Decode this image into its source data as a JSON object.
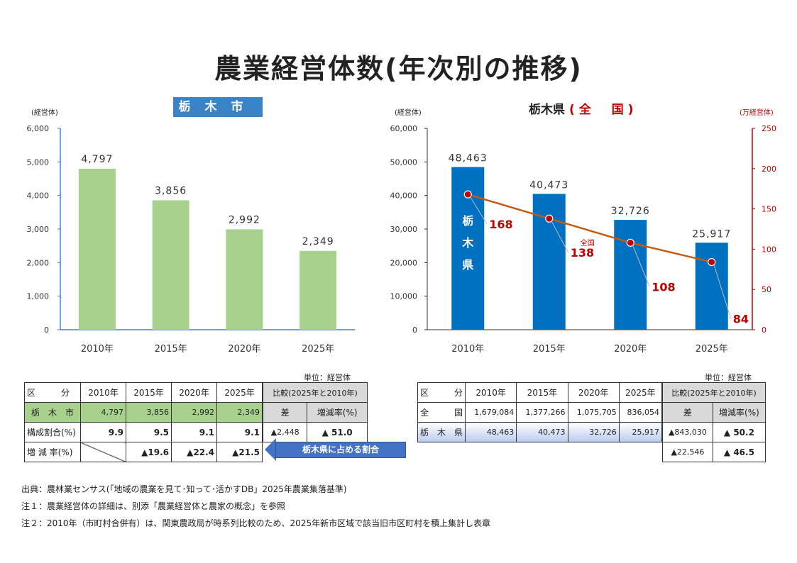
{
  "title": "農業経営体数(年次別の推移)",
  "left_chart": {
    "badge": "栃木市",
    "y_unit": "(経営体)"
  },
  "right_chart": {
    "title_main": "栃木県",
    "title_red": "(全　国)",
    "y_unit_left": "(経営体)",
    "y_unit_right": "(万経営体)",
    "bar_inner_label": [
      "栃",
      "木",
      "県"
    ],
    "line_label": "全国"
  },
  "chart_data": [
    {
      "type": "bar",
      "title": "栃木市",
      "categories": [
        "2010年",
        "2015年",
        "2020年",
        "2025年"
      ],
      "values": [
        4797,
        3856,
        2992,
        2349
      ],
      "value_labels": [
        "4,797",
        "3,856",
        "2,992",
        "2,349"
      ],
      "ylabel": "(経営体)",
      "ylim": [
        0,
        6000
      ],
      "yticks": [
        "0",
        "1,000",
        "2,000",
        "3,000",
        "4,000",
        "5,000",
        "6,000"
      ],
      "color": "#a9d18e"
    },
    {
      "type": "bar+line",
      "title": "栃木県(全国)",
      "categories": [
        "2010年",
        "2015年",
        "2020年",
        "2025年"
      ],
      "series": [
        {
          "name": "栃木県",
          "type": "bar",
          "values": [
            48463,
            40473,
            32726,
            25917
          ],
          "value_labels": [
            "48,463",
            "40,473",
            "32,726",
            "25,917"
          ],
          "axis": "left",
          "color": "#0070c0"
        },
        {
          "name": "全国",
          "type": "line",
          "values": [
            168,
            138,
            108,
            84
          ],
          "value_labels": [
            "168",
            "138",
            "108",
            "84"
          ],
          "axis": "right",
          "color": "#c55a11",
          "marker_color": "#c00000"
        }
      ],
      "ylim_left": [
        0,
        60000
      ],
      "yticks_left": [
        "0",
        "10,000",
        "20,000",
        "30,000",
        "40,000",
        "50,000",
        "60,000"
      ],
      "ylim_right": [
        0,
        250
      ],
      "yticks_right": [
        "0",
        "50",
        "100",
        "150",
        "200",
        "250"
      ]
    }
  ],
  "table_left": {
    "unit": "単位：経営体",
    "header": [
      "区　　　分",
      "2010年",
      "2015年",
      "2020年",
      "2025年"
    ],
    "compare_header": "比較(2025年と2010年)",
    "compare_sub": [
      "差",
      "増減率(%)"
    ],
    "rows": [
      {
        "label": "栃　木　市",
        "values": [
          "4,797",
          "3,856",
          "2,992",
          "2,349"
        ],
        "diff": "▲2,448",
        "rate": "▲ 51.0"
      },
      {
        "label": "構成割合(%)",
        "values": [
          "9.9",
          "9.5",
          "9.1",
          "9.1"
        ]
      },
      {
        "label": "増 減 率(%)",
        "values": [
          "",
          "▲19.6",
          "▲22.4",
          "▲21.5"
        ]
      }
    ]
  },
  "table_right": {
    "unit": "単位：経営体",
    "header": [
      "区　　　分",
      "2010年",
      "2015年",
      "2020年",
      "2025年"
    ],
    "compare_header": "比較(2025年と2010年)",
    "compare_sub": [
      "差",
      "増減率(%)"
    ],
    "rows": [
      {
        "label": "全　　　国",
        "values": [
          "1,679,084",
          "1,377,266",
          "1,075,705",
          "836,054"
        ],
        "diff": "▲843,030",
        "rate": "▲ 50.2"
      },
      {
        "label": "栃　木　県",
        "values": [
          "48,463",
          "40,473",
          "32,726",
          "25,917"
        ],
        "diff": "▲22,546",
        "rate": "▲ 46.5"
      }
    ]
  },
  "arrow_label": "栃木県に占める割合",
  "notes": [
    "出典：農林業センサス(「地域の農業を見て･知って･活かすDB」2025年農業集落基準)",
    "注１：農業経営体の詳細は、別添「農業経営体と農家の概念」を参照",
    "注２：2010年（市町村合併有）は、関東農政局が時系列比較のため、2025年新市区域で該当旧市区町村を積上集計し表章"
  ]
}
